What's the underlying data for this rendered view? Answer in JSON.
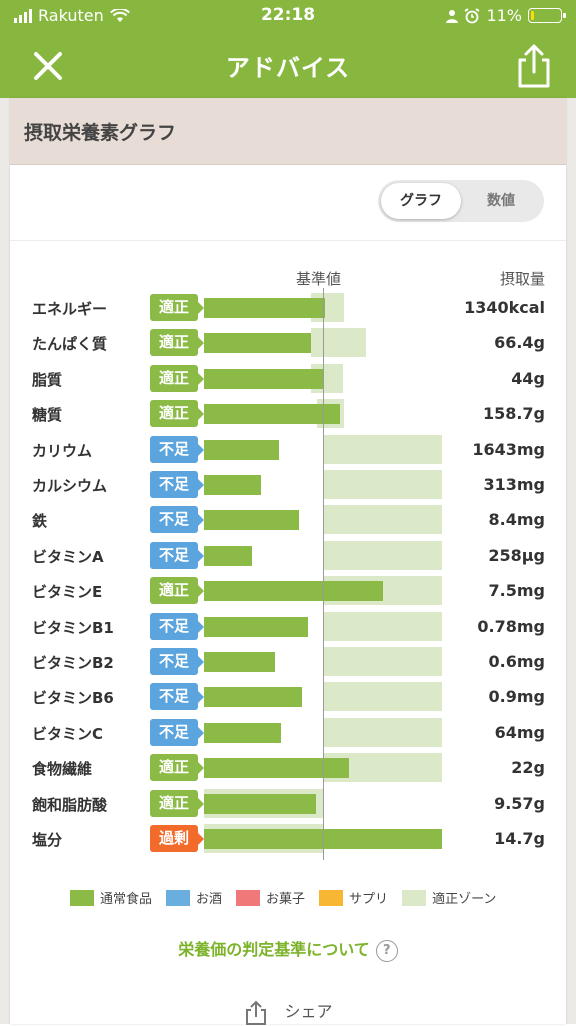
{
  "status_bar": {
    "carrier": "Rakuten",
    "time": "22:18",
    "battery": "11%",
    "battery_level": 0.11
  },
  "nav": {
    "title": "アドバイス",
    "close_icon": "close-icon",
    "share_icon": "share-icon"
  },
  "card": {
    "title": "摂取栄養素グラフ",
    "toggle": {
      "graph": "グラフ",
      "numbers": "数値",
      "selected": "グラフ"
    },
    "col_baseline": "基準値",
    "col_intake": "摂取量"
  },
  "colors": {
    "normal_food": "#8bbb46",
    "alcohol": "#6aaee0",
    "sweets": "#f07878",
    "supplement": "#f7b733",
    "zone": "#dbe9c9",
    "ok": "#8bbb46",
    "short": "#5ba4dd",
    "over": "#f26b2a"
  },
  "chart_data": {
    "type": "bar",
    "scale_note": "intake relative to reference (1.0 = reference line)",
    "rows": [
      {
        "name": "エネルギー",
        "status": "適正",
        "value": "1340kcal",
        "ratio": 1.02,
        "zone": [
          0.9,
          1.18
        ]
      },
      {
        "name": "たんぱく質",
        "status": "適正",
        "value": "66.4g",
        "ratio": 0.9,
        "zone": [
          0.9,
          1.36
        ]
      },
      {
        "name": "脂質",
        "status": "適正",
        "value": "44g",
        "ratio": 1.0,
        "zone": [
          0.9,
          1.17
        ]
      },
      {
        "name": "糖質",
        "status": "適正",
        "value": "158.7g",
        "ratio": 1.14,
        "zone": [
          0.95,
          1.18
        ]
      },
      {
        "name": "カリウム",
        "status": "不足",
        "value": "1643mg",
        "ratio": 0.63,
        "zone": [
          1.0,
          2.0
        ]
      },
      {
        "name": "カルシウム",
        "status": "不足",
        "value": "313mg",
        "ratio": 0.48,
        "zone": [
          1.0,
          2.0
        ]
      },
      {
        "name": "鉄",
        "status": "不足",
        "value": "8.4mg",
        "ratio": 0.8,
        "zone": [
          1.0,
          2.0
        ]
      },
      {
        "name": "ビタミンA",
        "status": "不足",
        "value": "258μg",
        "ratio": 0.4,
        "zone": [
          1.0,
          2.0
        ]
      },
      {
        "name": "ビタミンE",
        "status": "適正",
        "value": "7.5mg",
        "ratio": 1.5,
        "zone": [
          1.0,
          2.0
        ]
      },
      {
        "name": "ビタミンB1",
        "status": "不足",
        "value": "0.78mg",
        "ratio": 0.87,
        "zone": [
          1.0,
          2.0
        ]
      },
      {
        "name": "ビタミンB2",
        "status": "不足",
        "value": "0.6mg",
        "ratio": 0.6,
        "zone": [
          1.0,
          2.0
        ]
      },
      {
        "name": "ビタミンB6",
        "status": "不足",
        "value": "0.9mg",
        "ratio": 0.82,
        "zone": [
          1.0,
          2.0
        ]
      },
      {
        "name": "ビタミンC",
        "status": "不足",
        "value": "64mg",
        "ratio": 0.65,
        "zone": [
          1.0,
          2.0
        ]
      },
      {
        "name": "食物繊維",
        "status": "適正",
        "value": "22g",
        "ratio": 1.22,
        "zone": [
          1.0,
          2.0
        ]
      },
      {
        "name": "飽和脂肪酸",
        "status": "適正",
        "value": "9.57g",
        "ratio": 0.94,
        "zone": [
          0.0,
          1.0
        ]
      },
      {
        "name": "塩分",
        "status": "過剰",
        "value": "14.7g",
        "ratio": 2.0,
        "zone": [
          0.0,
          1.0
        ]
      }
    ]
  },
  "legend": [
    {
      "label": "通常食品",
      "color": "#8bbb46"
    },
    {
      "label": "お酒",
      "color": "#6aaee0"
    },
    {
      "label": "お菓子",
      "color": "#f07878"
    },
    {
      "label": "サプリ",
      "color": "#f7b733"
    },
    {
      "label": "適正ゾーン",
      "color": "#dbe9c9"
    }
  ],
  "criteria_link": "栄養価の判定基準について",
  "share_label": "シェア"
}
